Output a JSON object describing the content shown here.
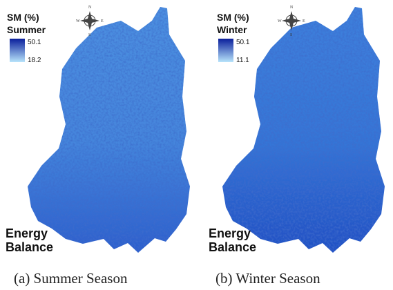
{
  "panels": [
    {
      "legend": {
        "title": "SM (%)",
        "season": "Summer",
        "max": 50.1,
        "min": 18.2
      },
      "compass": {
        "n": "N",
        "w": "W",
        "e": "E",
        "s": "S"
      },
      "label": {
        "line1": "Energy",
        "line2": "Balance"
      },
      "caption": "(a) Summer Season"
    },
    {
      "legend": {
        "title": "SM (%)",
        "season": "Winter",
        "max": 50.1,
        "min": 11.1
      },
      "compass": {
        "n": "N",
        "w": "W",
        "e": "E",
        "s": "S"
      },
      "label": {
        "line1": "Energy",
        "line2": "Balance"
      },
      "caption": "(b) Winter Season"
    }
  ]
}
